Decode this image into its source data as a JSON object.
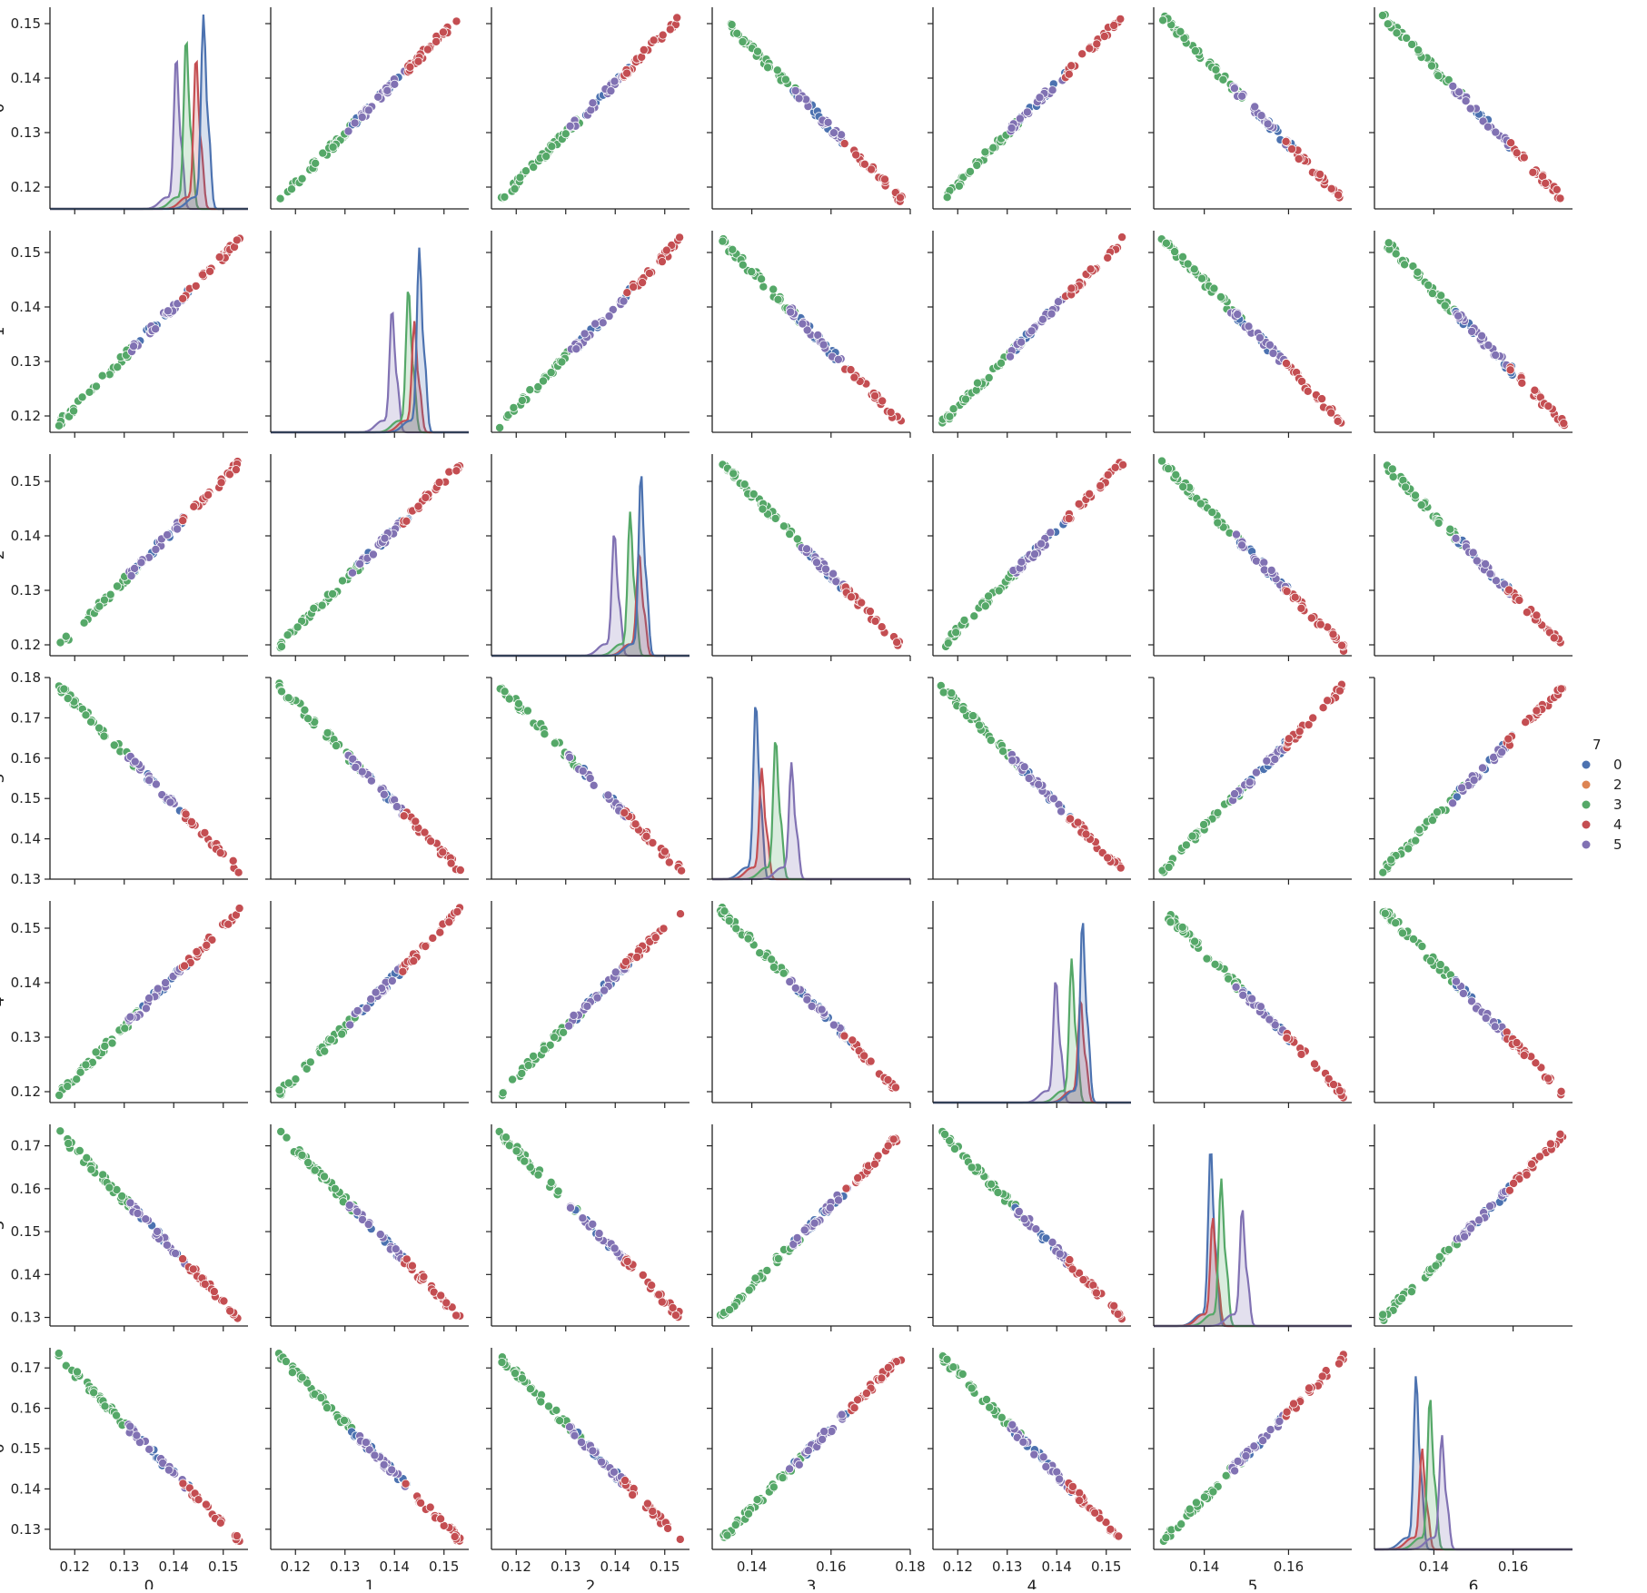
{
  "chart_data": {
    "type": "scatter",
    "kind": "pairplot",
    "variables": [
      "0",
      "1",
      "2",
      "3",
      "4",
      "5",
      "6"
    ],
    "hue_title": "7",
    "legend_position": "right",
    "grid": false,
    "series": [
      {
        "name": "0",
        "color": "#4c72b0"
      },
      {
        "name": "2",
        "color": "#dd8452"
      },
      {
        "name": "3",
        "color": "#55a868"
      },
      {
        "name": "4",
        "color": "#c44e52"
      },
      {
        "name": "5",
        "color": "#8172b3"
      }
    ],
    "axes": [
      {
        "label": "0",
        "lim": [
          0.115,
          0.155
        ],
        "ticks": [
          "0.12",
          "0.13",
          "0.14",
          "0.15"
        ]
      },
      {
        "label": "1",
        "lim": [
          0.115,
          0.155
        ],
        "ticks": [
          "0.12",
          "0.13",
          "0.14",
          "0.15"
        ]
      },
      {
        "label": "2",
        "lim": [
          0.115,
          0.155
        ],
        "ticks": [
          "0.12",
          "0.13",
          "0.14",
          "0.15"
        ]
      },
      {
        "label": "3",
        "lim": [
          0.13,
          0.18
        ],
        "ticks": [
          "0.14",
          "0.16",
          "0.18"
        ]
      },
      {
        "label": "4",
        "lim": [
          0.115,
          0.155
        ],
        "ticks": [
          "0.12",
          "0.13",
          "0.14",
          "0.15"
        ]
      },
      {
        "label": "5",
        "lim": [
          0.128,
          0.175
        ],
        "ticks": [
          "0.14",
          "0.16"
        ]
      },
      {
        "label": "6",
        "lim": [
          0.125,
          0.175
        ],
        "ticks": [
          "0.14",
          "0.16"
        ]
      }
    ],
    "y_axes": [
      {
        "lim": [
          0.116,
          0.153
        ],
        "ticks": [
          "0.12",
          "0.13",
          "0.14",
          "0.15"
        ]
      },
      {
        "lim": [
          0.117,
          0.154
        ],
        "ticks": [
          "0.12",
          "0.13",
          "0.14",
          "0.15"
        ]
      },
      {
        "lim": [
          0.118,
          0.155
        ],
        "ticks": [
          "0.12",
          "0.13",
          "0.14",
          "0.15"
        ]
      },
      {
        "lim": [
          0.13,
          0.18
        ],
        "ticks": [
          "0.13",
          "0.14",
          "0.15",
          "0.16",
          "0.17",
          "0.18"
        ]
      },
      {
        "lim": [
          0.118,
          0.155
        ],
        "ticks": [
          "0.12",
          "0.13",
          "0.14",
          "0.15"
        ]
      },
      {
        "lim": [
          0.128,
          0.175
        ],
        "ticks": [
          "0.13",
          "0.14",
          "0.15",
          "0.16",
          "0.17"
        ]
      },
      {
        "lim": [
          0.125,
          0.175
        ],
        "ticks": [
          "0.13",
          "0.14",
          "0.15",
          "0.16",
          "0.17"
        ]
      }
    ],
    "relationships": {
      "0": "positive",
      "1": "positive",
      "2": "positive",
      "4": "positive",
      "3": "negative",
      "5": "negative",
      "6": "negative"
    },
    "kde_peaks": [
      [
        {
          "name": "5",
          "center": 0.1405,
          "height": 0.77
        },
        {
          "name": "3",
          "center": 0.1425,
          "height": 0.87
        },
        {
          "name": "4",
          "center": 0.1445,
          "height": 0.77
        },
        {
          "name": "0",
          "center": 0.146,
          "height": 0.98
        }
      ],
      [
        {
          "name": "5",
          "center": 0.1395,
          "height": 0.62
        },
        {
          "name": "3",
          "center": 0.1428,
          "height": 0.73
        },
        {
          "name": "4",
          "center": 0.144,
          "height": 0.55
        },
        {
          "name": "0",
          "center": 0.145,
          "height": 0.93
        }
      ],
      [
        {
          "name": "5",
          "center": 0.1398,
          "height": 0.62
        },
        {
          "name": "3",
          "center": 0.143,
          "height": 0.72
        },
        {
          "name": "4",
          "center": 0.1448,
          "height": 0.52
        },
        {
          "name": "0",
          "center": 0.1452,
          "height": 0.93
        }
      ],
      [
        {
          "name": "0",
          "center": 0.141,
          "height": 0.9
        },
        {
          "name": "4",
          "center": 0.1425,
          "height": 0.55
        },
        {
          "name": "3",
          "center": 0.146,
          "height": 0.71
        },
        {
          "name": "5",
          "center": 0.15,
          "height": 0.58
        }
      ],
      [
        {
          "name": "5",
          "center": 0.1398,
          "height": 0.62
        },
        {
          "name": "3",
          "center": 0.143,
          "height": 0.72
        },
        {
          "name": "4",
          "center": 0.1448,
          "height": 0.52
        },
        {
          "name": "0",
          "center": 0.1452,
          "height": 0.93
        }
      ],
      [
        {
          "name": "0",
          "center": 0.1415,
          "height": 0.91
        },
        {
          "name": "4",
          "center": 0.142,
          "height": 0.54
        },
        {
          "name": "3",
          "center": 0.144,
          "height": 0.74
        },
        {
          "name": "5",
          "center": 0.149,
          "height": 0.59
        }
      ],
      [
        {
          "name": "0",
          "center": 0.1355,
          "height": 0.88
        },
        {
          "name": "4",
          "center": 0.137,
          "height": 0.5
        },
        {
          "name": "3",
          "center": 0.139,
          "height": 0.77
        },
        {
          "name": "5",
          "center": 0.142,
          "height": 0.57
        }
      ]
    ]
  }
}
